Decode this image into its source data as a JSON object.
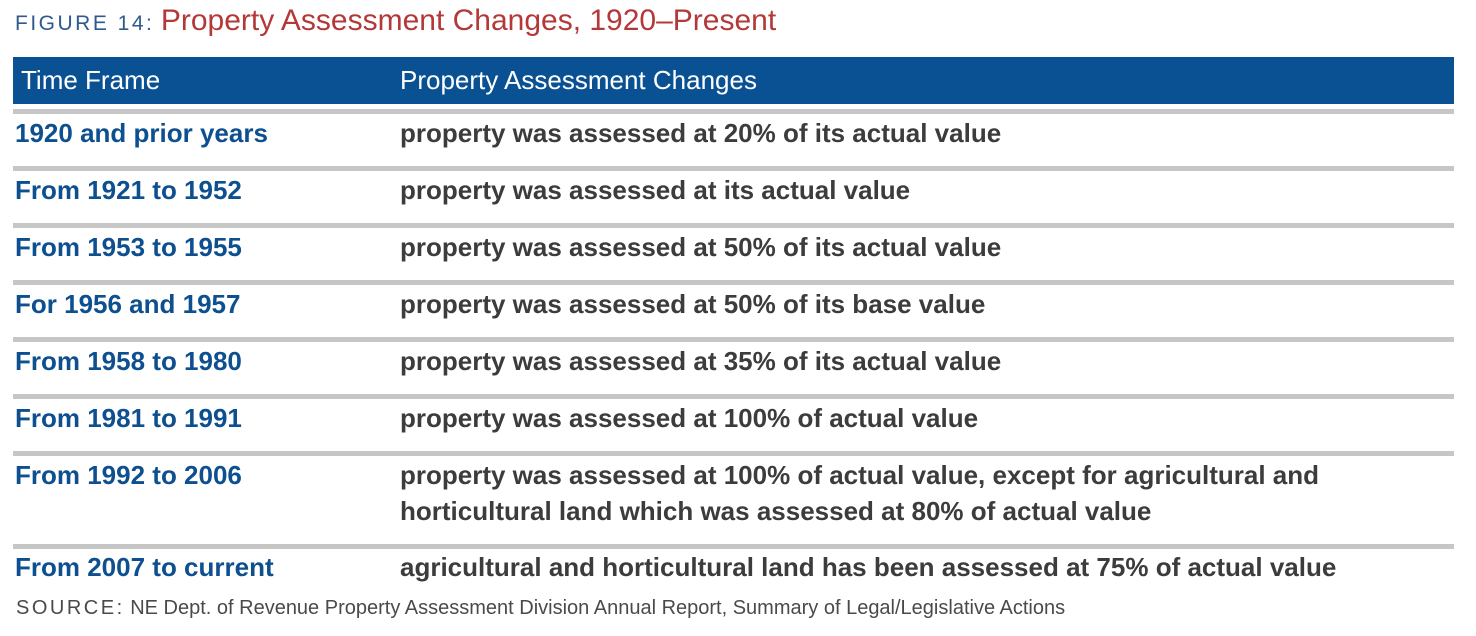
{
  "figure": {
    "label": "FIGURE 14:",
    "title": "Property Assessment Changes, 1920–Present"
  },
  "table": {
    "headers": [
      "Time Frame",
      "Property Assessment Changes"
    ],
    "rows": [
      {
        "time": "1920 and prior years",
        "change": "property was assessed at 20% of its actual value"
      },
      {
        "time": "From 1921 to 1952",
        "change": "property was assessed at its actual value"
      },
      {
        "time": "From 1953 to 1955",
        "change": "property was assessed at 50% of its actual value"
      },
      {
        "time": "For 1956 and 1957",
        "change": "property was assessed at 50% of its base value"
      },
      {
        "time": "From 1958 to 1980",
        "change": "property was assessed at 35% of its actual value"
      },
      {
        "time": "From 1981 to 1991",
        "change": "property was assessed at 100% of actual value"
      },
      {
        "time": "From 1992 to 2006",
        "change": "property was assessed at 100% of actual value, except for agricultural and horticultural land which was assessed at 80% of actual value"
      },
      {
        "time": "From 2007 to current",
        "change": "agricultural and horticultural land has been assessed at 75% of actual value"
      }
    ]
  },
  "source": {
    "label": "SOURCE:",
    "text": "NE Dept. of Revenue Property Assessment Division Annual Report, Summary of Legal/Legislative Actions"
  },
  "colors": {
    "header_bg": "#0a5194",
    "title_red": "#b43838",
    "label_blue": "#2e5a8c",
    "row_rule": "#c6c6c6"
  }
}
